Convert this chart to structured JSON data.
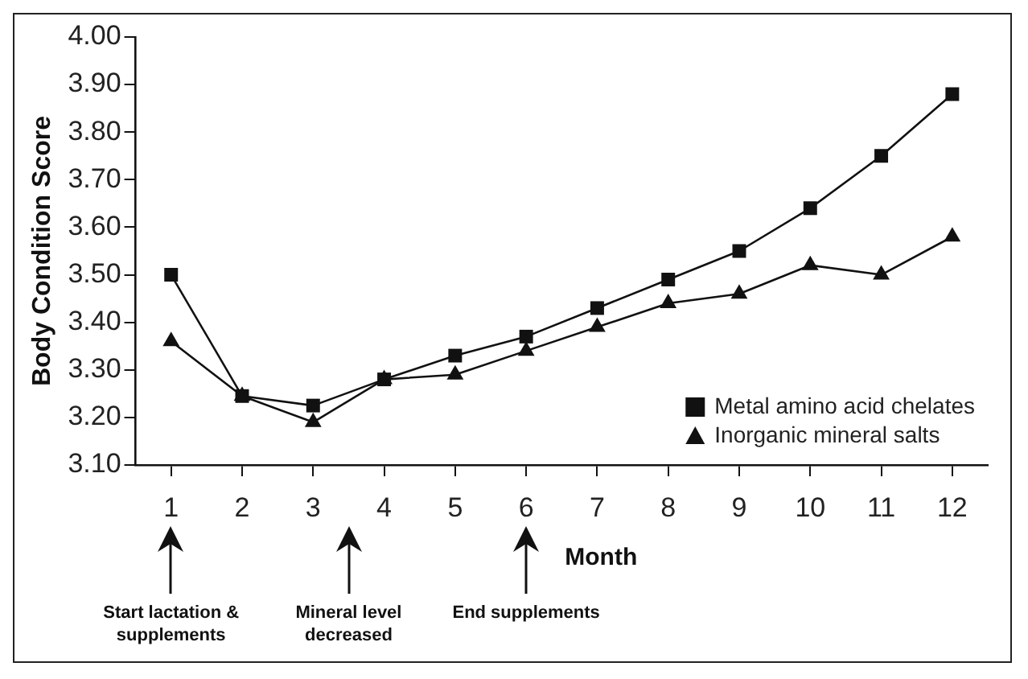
{
  "chart_data": {
    "type": "line",
    "xlabel": "Month",
    "ylabel": "Body Condition Score",
    "x": [
      1,
      2,
      3,
      4,
      5,
      6,
      7,
      8,
      9,
      10,
      11,
      12
    ],
    "series": [
      {
        "name": "Metal amino acid chelates",
        "color": "#111111",
        "marker": "square",
        "values": [
          3.5,
          3.245,
          3.225,
          3.28,
          3.33,
          3.37,
          3.43,
          3.49,
          3.55,
          3.64,
          3.75,
          3.88
        ]
      },
      {
        "name": "Inorganic mineral salts",
        "color": "#111111",
        "marker": "triangle",
        "values": [
          3.36,
          3.245,
          3.19,
          3.28,
          3.29,
          3.34,
          3.39,
          3.44,
          3.46,
          3.52,
          3.5,
          3.58
        ]
      }
    ],
    "xlim": [
      0.5,
      12.5
    ],
    "xticks": [
      1,
      2,
      3,
      4,
      5,
      6,
      7,
      8,
      9,
      10,
      11,
      12
    ],
    "ylim": [
      3.1,
      4.0
    ],
    "yticks": [
      {
        "value": 3.1,
        "label": "3.10"
      },
      {
        "value": 3.2,
        "label": "3.20"
      },
      {
        "value": 3.3,
        "label": "3.30"
      },
      {
        "value": 3.4,
        "label": "3.40"
      },
      {
        "value": 3.5,
        "label": "3.50"
      },
      {
        "value": 3.6,
        "label": "3.60"
      },
      {
        "value": 3.7,
        "label": "3.70"
      },
      {
        "value": 3.8,
        "label": "3.80"
      },
      {
        "value": 3.9,
        "label": "3.90"
      },
      {
        "value": 4.0,
        "label": "4.00"
      }
    ],
    "annotations": [
      "Start lactation & supplements",
      "Mineral level decreased",
      "End supplements"
    ],
    "grid": false,
    "legend": "bottom right",
    "line_style": "solid"
  }
}
